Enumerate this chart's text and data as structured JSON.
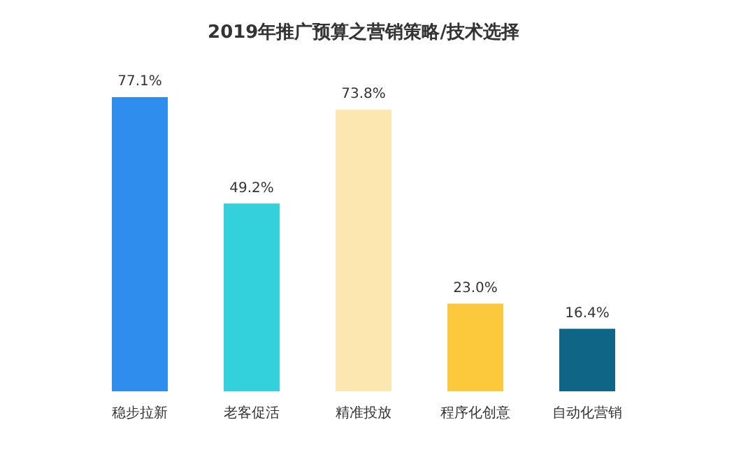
{
  "chart_data": {
    "type": "bar",
    "title": "2019年推广预算之营销策略/技术选择",
    "categories": [
      "稳步拉新",
      "老客促活",
      "精准投放",
      "程序化创意",
      "自动化营销"
    ],
    "values": [
      77.1,
      49.2,
      73.8,
      23.0,
      16.4
    ],
    "value_labels": [
      "77.1%",
      "49.2%",
      "73.8%",
      "23.0%",
      "16.4%"
    ],
    "colors": [
      "#2e8ded",
      "#33d1db",
      "#fde7b0",
      "#fbc93b",
      "#0e6585"
    ],
    "legend": false,
    "grid": false
  }
}
